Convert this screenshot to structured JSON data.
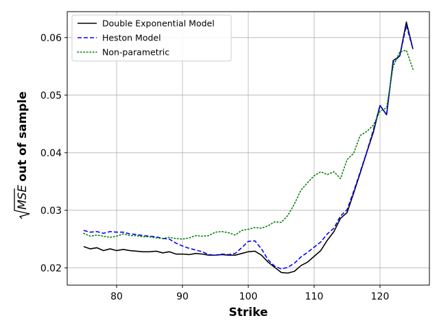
{
  "chart_data": {
    "type": "line",
    "xlabel": "Strike",
    "ylabel_sqrt": "MSE",
    "ylabel_rest": "out of sample",
    "xlim": [
      72.5,
      127.5
    ],
    "ylim": [
      0.017,
      0.0645
    ],
    "xticks": [
      80,
      90,
      100,
      110,
      120
    ],
    "yticks": [
      0.02,
      0.03,
      0.04,
      0.05,
      0.06
    ],
    "xtick_labels": [
      "80",
      "90",
      "100",
      "110",
      "120"
    ],
    "ytick_labels": [
      "0.02",
      "0.03",
      "0.04",
      "0.05",
      "0.06"
    ],
    "grid": true,
    "legend_position": "top-left",
    "x": [
      75,
      76,
      77,
      78,
      79,
      80,
      81,
      82,
      83,
      84,
      85,
      86,
      87,
      88,
      89,
      90,
      91,
      92,
      93,
      94,
      95,
      96,
      97,
      98,
      99,
      100,
      101,
      102,
      103,
      104,
      105,
      106,
      107,
      108,
      109,
      110,
      111,
      112,
      113,
      114,
      115,
      116,
      117,
      118,
      119,
      120,
      121,
      122,
      123,
      124,
      125
    ],
    "series": [
      {
        "name": "Double Exponential Model",
        "color": "#000000",
        "dash": "solid",
        "values": [
          0.0237,
          0.0233,
          0.0235,
          0.023,
          0.0233,
          0.023,
          0.0232,
          0.023,
          0.0229,
          0.0228,
          0.0228,
          0.0229,
          0.0226,
          0.0228,
          0.0224,
          0.0224,
          0.0223,
          0.0225,
          0.0224,
          0.0222,
          0.0222,
          0.0223,
          0.0222,
          0.0222,
          0.0225,
          0.0228,
          0.0229,
          0.0222,
          0.021,
          0.0201,
          0.0192,
          0.0191,
          0.0194,
          0.0204,
          0.021,
          0.022,
          0.023,
          0.0248,
          0.0263,
          0.0286,
          0.0296,
          0.033,
          0.0365,
          0.0401,
          0.0436,
          0.0482,
          0.0466,
          0.056,
          0.0568,
          0.0627,
          0.058
        ]
      },
      {
        "name": "Heston Model",
        "color": "#0000ff",
        "dash": "dashed",
        "values": [
          0.0265,
          0.0262,
          0.0263,
          0.026,
          0.0263,
          0.0262,
          0.0262,
          0.0259,
          0.0258,
          0.0256,
          0.0255,
          0.0254,
          0.0251,
          0.025,
          0.0243,
          0.0238,
          0.0234,
          0.0231,
          0.0228,
          0.0223,
          0.0222,
          0.0224,
          0.0223,
          0.0225,
          0.0235,
          0.0246,
          0.0247,
          0.0233,
          0.0214,
          0.0203,
          0.0198,
          0.0201,
          0.0208,
          0.0219,
          0.0227,
          0.0236,
          0.0245,
          0.0259,
          0.0269,
          0.029,
          0.0301,
          0.0333,
          0.0367,
          0.0402,
          0.044,
          0.0482,
          0.0466,
          0.0557,
          0.0568,
          0.0621,
          0.058
        ]
      },
      {
        "name": "Non-parametric",
        "color": "#008000",
        "dash": "dotted",
        "values": [
          0.026,
          0.0255,
          0.0257,
          0.0255,
          0.0253,
          0.0255,
          0.0259,
          0.0256,
          0.0256,
          0.0254,
          0.0254,
          0.0252,
          0.0251,
          0.0253,
          0.0251,
          0.025,
          0.0252,
          0.0256,
          0.0255,
          0.0256,
          0.0262,
          0.0263,
          0.0261,
          0.0257,
          0.0265,
          0.0267,
          0.027,
          0.0269,
          0.0273,
          0.028,
          0.0279,
          0.0291,
          0.0311,
          0.0335,
          0.0348,
          0.036,
          0.0367,
          0.0362,
          0.0367,
          0.0355,
          0.0388,
          0.0399,
          0.043,
          0.0437,
          0.0448,
          0.0472,
          0.0478,
          0.055,
          0.0575,
          0.0578,
          0.0545
        ]
      }
    ]
  }
}
